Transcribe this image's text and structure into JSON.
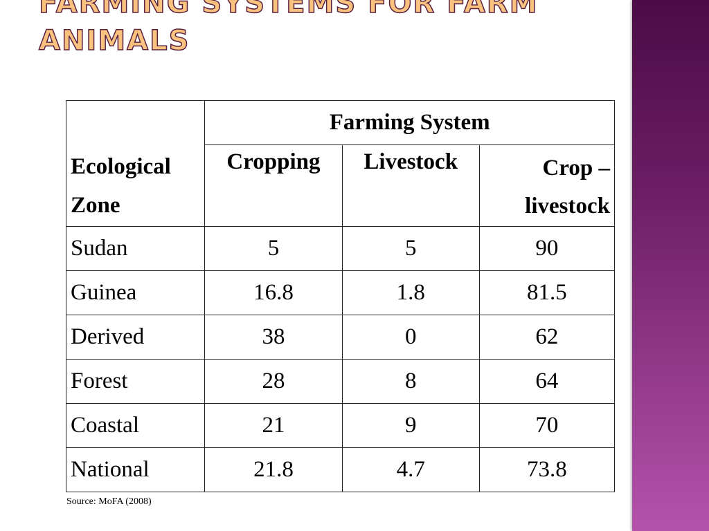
{
  "title": "Farming Systems for Farm Animals",
  "table": {
    "group_header": "Farming System",
    "row_header": "Ecological Zone",
    "columns": [
      "Cropping",
      "Livestock",
      "Crop – livestock"
    ],
    "rows": [
      {
        "zone": "Sudan",
        "values": [
          "5",
          "5",
          "90"
        ]
      },
      {
        "zone": "Guinea",
        "values": [
          "16.8",
          "1.8",
          "81.5"
        ]
      },
      {
        "zone": "Derived",
        "values": [
          "38",
          "0",
          "62"
        ]
      },
      {
        "zone": "Forest",
        "values": [
          "28",
          "8",
          "64"
        ]
      },
      {
        "zone": "Coastal",
        "values": [
          "21",
          "9",
          "70"
        ]
      },
      {
        "zone": "National",
        "values": [
          "21.8",
          "4.7",
          "73.8"
        ]
      }
    ]
  },
  "source": "Source: MoFA (2008)"
}
